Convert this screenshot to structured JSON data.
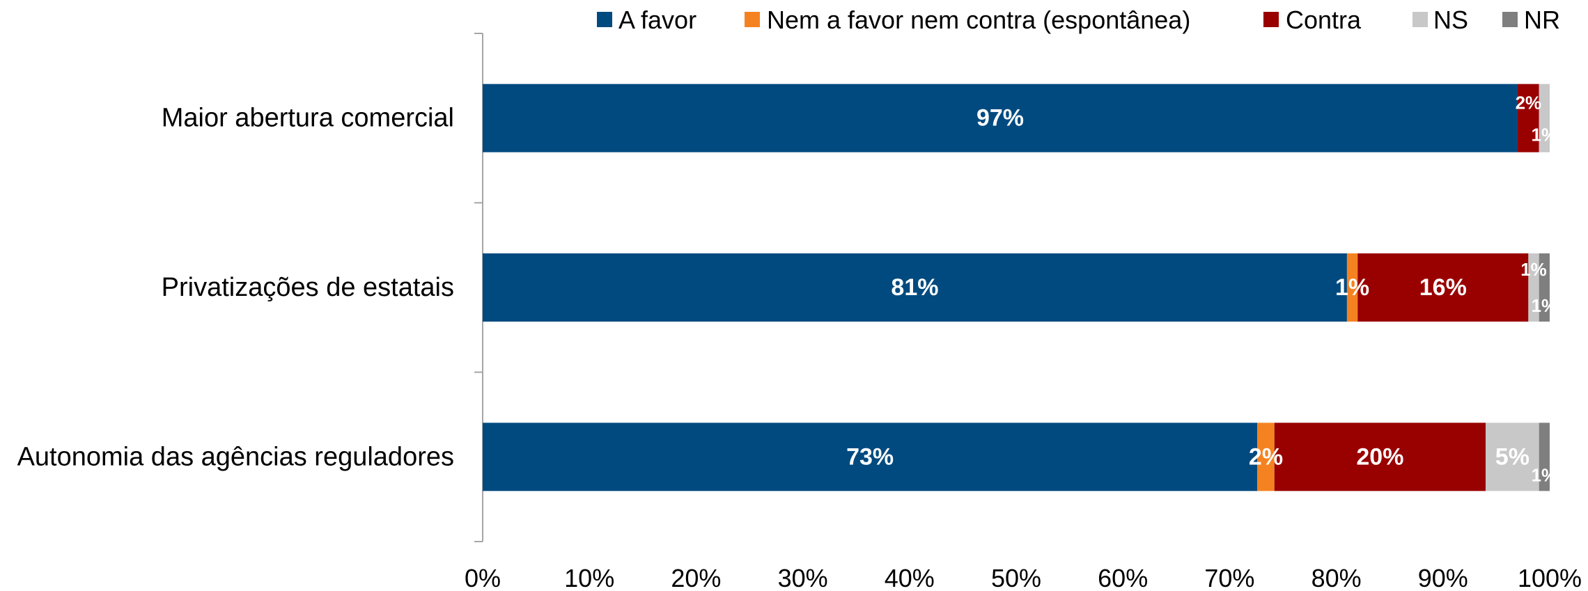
{
  "chart_data": {
    "type": "bar",
    "orientation": "horizontal",
    "stacked": true,
    "title": "",
    "xlabel": "",
    "ylabel": "",
    "xlim": [
      0,
      100
    ],
    "x_ticks": [
      "0%",
      "10%",
      "20%",
      "30%",
      "40%",
      "50%",
      "60%",
      "70%",
      "80%",
      "90%",
      "100%"
    ],
    "legend_position": "top-right",
    "grid": false,
    "categories": [
      "Maior abertura comercial",
      "Privatizações de estatais",
      "Autonomia das agências reguladores"
    ],
    "series": [
      {
        "name": "A favor",
        "color": "#004a7f",
        "values": [
          97,
          81,
          72.6
        ],
        "labels": [
          "97%",
          "81%",
          "73%"
        ]
      },
      {
        "name": "Nem a favor nem contra (espontânea)",
        "color": "#f58220",
        "values": [
          0,
          1,
          1.6
        ],
        "labels": [
          "",
          "1%",
          "2%"
        ]
      },
      {
        "name": "Contra",
        "color": "#990000",
        "values": [
          2,
          16,
          19.8
        ],
        "labels": [
          "2%",
          "16%",
          "20%"
        ]
      },
      {
        "name": "NS",
        "color": "#c8c8c8",
        "values": [
          1,
          1,
          5
        ],
        "labels": [
          "1%",
          "1%",
          "5%"
        ]
      },
      {
        "name": "NR",
        "color": "#7f7f7f",
        "values": [
          0,
          1,
          1
        ],
        "labels": [
          "",
          "1%",
          "1%"
        ]
      }
    ]
  }
}
